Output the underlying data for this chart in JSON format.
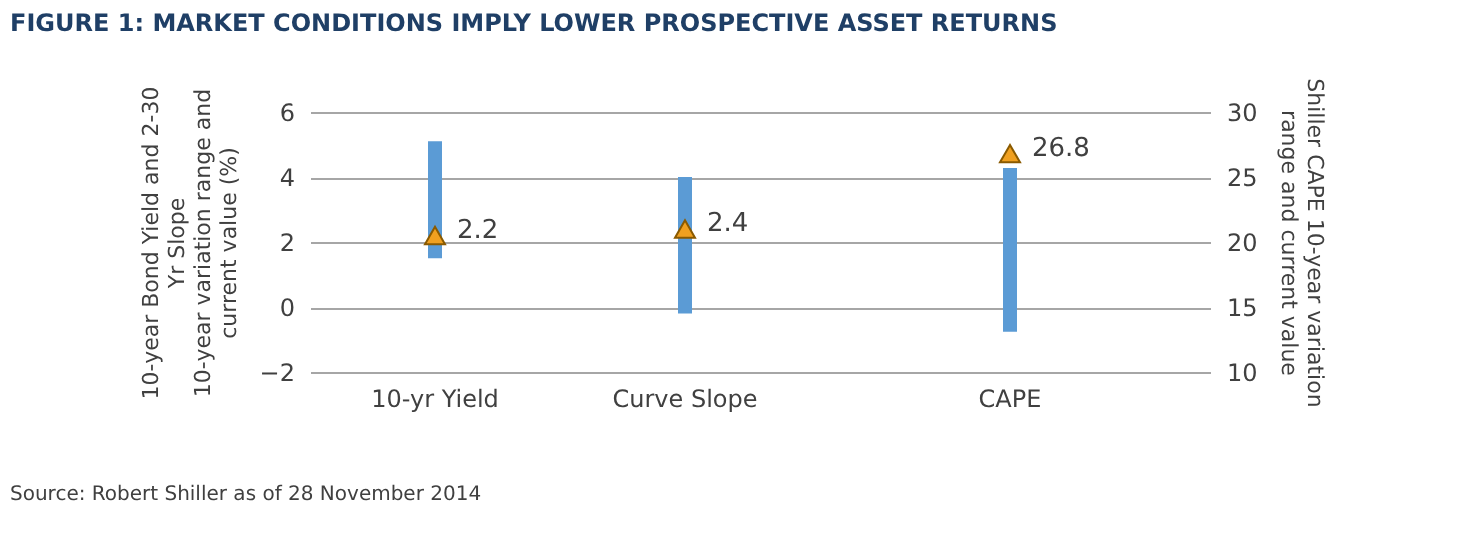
{
  "chart_data": [
    {
      "type": "bar",
      "title": "FIGURE 1: MARKET CONDITIONS IMPLY LOWER PROSPECTIVE ASSET RETURNS",
      "ylabel": "10-year Bond Yield and 2-30\nYr Slope\n10-year variation range and\ncurrent value (%)",
      "categories": [
        "10-yr Yield",
        "Curve Slope"
      ],
      "ylim": [
        -2,
        6
      ],
      "yticks": [
        -2,
        0,
        2,
        4,
        6
      ],
      "grid": "y",
      "annotations": [
        "Source: Robert Shiller as of 28 November 2014"
      ],
      "series": [
        {
          "color": "#5b9bd5",
          "base": [
            1.5,
            -0.2
          ],
          "values": [
            3.6,
            4.2
          ]
        },
        {
          "type": "scatter",
          "marker": "triangle",
          "color": "#f0a020",
          "values": [
            2.2,
            2.4
          ],
          "value_labels": [
            "2.2",
            "2.4"
          ]
        }
      ]
    },
    {
      "type": "bar",
      "y2label": "Shiller CAPE 10-year variation\nrange and current value",
      "categories": [
        "CAPE"
      ],
      "y2lim": [
        10,
        30
      ],
      "y2ticks": [
        10,
        15,
        20,
        25,
        30
      ],
      "grid": "y",
      "series": [
        {
          "axis": "y2",
          "color": "#5b9bd5",
          "base": [
            13.1
          ],
          "values": [
            12.6
          ]
        },
        {
          "type": "scatter",
          "axis": "y2",
          "marker": "triangle",
          "color": "#f0a020",
          "values": [
            26.8
          ],
          "value_labels": [
            "26.8"
          ]
        }
      ]
    }
  ]
}
